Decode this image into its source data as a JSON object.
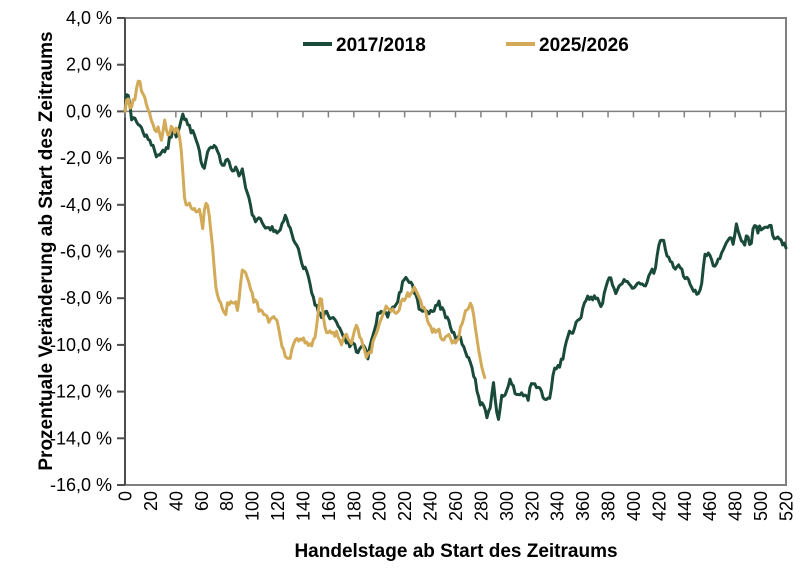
{
  "chart_data": {
    "type": "line",
    "title": "",
    "xlabel": "Handelstage ab Start des Zeitraums",
    "ylabel": "Prozentuale Veränderung ab Start des Zeitraums",
    "xlim": [
      0,
      520
    ],
    "ylim": [
      -16,
      4
    ],
    "grid": false,
    "legend_position": "top-center-inside",
    "background_color": "#ffffff",
    "axis_box_color": "#808080",
    "y_axis_line_color": "#4d4d4d",
    "zero_line_color": "#808080",
    "tick_text_color": "#000000",
    "x_ticks": {
      "values": [
        0,
        20,
        40,
        60,
        80,
        100,
        120,
        140,
        160,
        180,
        200,
        220,
        240,
        260,
        280,
        300,
        320,
        340,
        360,
        380,
        400,
        420,
        440,
        460,
        480,
        500,
        520
      ],
      "labels": [
        "0",
        "20",
        "40",
        "60",
        "80",
        "100",
        "120",
        "140",
        "160",
        "180",
        "200",
        "220",
        "240",
        "260",
        "280",
        "300",
        "320",
        "340",
        "360",
        "380",
        "400",
        "420",
        "440",
        "460",
        "480",
        "500",
        "520"
      ],
      "rotation_deg": -90
    },
    "y_ticks": {
      "values": [
        4,
        2,
        0,
        -2,
        -4,
        -6,
        -8,
        -10,
        -12,
        -14,
        -16
      ],
      "labels": [
        "4,0 %",
        "2,0 %",
        "0,0 %",
        "-2,0 %",
        "-4,0 %",
        "-6,0 %",
        "-8,0 %",
        "-10,0 %",
        "-12,0 %",
        "-14,0 %",
        "-16,0 %"
      ]
    },
    "series": [
      {
        "name": "2017/2018",
        "color": "#1a4a3a",
        "line_width": 3,
        "x_unit": "Handelstag",
        "y_unit": "percent",
        "anchors": [
          [
            0,
            0.0
          ],
          [
            1,
            0.55
          ],
          [
            2,
            1.0
          ],
          [
            3,
            0.5
          ],
          [
            5,
            -0.3
          ],
          [
            7,
            -0.15
          ],
          [
            9,
            -0.45
          ],
          [
            12,
            -0.63
          ],
          [
            14,
            -0.98
          ],
          [
            17,
            -1.13
          ],
          [
            20,
            -1.41
          ],
          [
            22,
            -1.56
          ],
          [
            25,
            -1.91
          ],
          [
            28,
            -1.84
          ],
          [
            30,
            -1.56
          ],
          [
            33,
            -1.7
          ],
          [
            35,
            -1.13
          ],
          [
            38,
            -0.84
          ],
          [
            41,
            -1.2
          ],
          [
            43,
            -0.63
          ],
          [
            46,
            -0.15
          ],
          [
            49,
            -0.5
          ],
          [
            51,
            -0.7
          ],
          [
            54,
            -0.98
          ],
          [
            57,
            -1.48
          ],
          [
            60,
            -2.1
          ],
          [
            62,
            -2.5
          ],
          [
            64,
            -1.9
          ],
          [
            67,
            -1.56
          ],
          [
            70,
            -1.41
          ],
          [
            72,
            -1.56
          ],
          [
            75,
            -2.13
          ],
          [
            78,
            -2.41
          ],
          [
            80,
            -1.98
          ],
          [
            82,
            -2.27
          ],
          [
            85,
            -2.5
          ],
          [
            88,
            -2.35
          ],
          [
            90,
            -2.7
          ],
          [
            93,
            -2.55
          ],
          [
            95,
            -3.2
          ],
          [
            98,
            -3.9
          ],
          [
            102,
            -4.7
          ],
          [
            106,
            -4.6
          ],
          [
            109,
            -5.0
          ],
          [
            112,
            -5.1
          ],
          [
            115,
            -4.95
          ],
          [
            118,
            -5.25
          ],
          [
            122,
            -5.0
          ],
          [
            126,
            -4.45
          ],
          [
            129,
            -4.9
          ],
          [
            132,
            -5.4
          ],
          [
            136,
            -5.9
          ],
          [
            140,
            -6.7
          ],
          [
            144,
            -6.91
          ],
          [
            146,
            -7.4
          ],
          [
            148,
            -8.05
          ],
          [
            152,
            -8.48
          ],
          [
            155,
            -8.8
          ],
          [
            158,
            -8.6
          ],
          [
            161,
            -8.77
          ],
          [
            164,
            -8.7
          ],
          [
            167,
            -9.0
          ],
          [
            171,
            -9.5
          ],
          [
            175,
            -9.9
          ],
          [
            177,
            -10.1
          ],
          [
            179,
            -9.8
          ],
          [
            183,
            -10.3
          ],
          [
            187,
            -10.0
          ],
          [
            191,
            -10.5
          ],
          [
            195,
            -9.7
          ],
          [
            199,
            -8.7
          ],
          [
            203,
            -8.56
          ],
          [
            207,
            -8.77
          ],
          [
            211,
            -8.35
          ],
          [
            215,
            -8.06
          ],
          [
            219,
            -7.15
          ],
          [
            223,
            -7.27
          ],
          [
            227,
            -7.63
          ],
          [
            231,
            -8.35
          ],
          [
            235,
            -8.63
          ],
          [
            239,
            -8.63
          ],
          [
            243,
            -8.48
          ],
          [
            247,
            -8.2
          ],
          [
            252,
            -8.77
          ],
          [
            256,
            -9.2
          ],
          [
            260,
            -9.63
          ],
          [
            263,
            -9.63
          ],
          [
            267,
            -10.13
          ],
          [
            271,
            -10.77
          ],
          [
            275,
            -11.41
          ],
          [
            279,
            -12.48
          ],
          [
            283,
            -12.63
          ],
          [
            285,
            -13.11
          ],
          [
            287,
            -12.7
          ],
          [
            290,
            -11.7
          ],
          [
            292,
            -12.77
          ],
          [
            294,
            -13.3
          ],
          [
            296,
            -12.26
          ],
          [
            300,
            -12.05
          ],
          [
            303,
            -11.41
          ],
          [
            305,
            -11.7
          ],
          [
            307,
            -12.05
          ],
          [
            311,
            -12.12
          ],
          [
            315,
            -12.05
          ],
          [
            317,
            -12.48
          ],
          [
            319,
            -11.55
          ],
          [
            323,
            -11.77
          ],
          [
            327,
            -11.84
          ],
          [
            330,
            -12.33
          ],
          [
            334,
            -12.19
          ],
          [
            338,
            -11.05
          ],
          [
            342,
            -10.9
          ],
          [
            345,
            -10.48
          ],
          [
            348,
            -9.63
          ],
          [
            350,
            -9.48
          ],
          [
            353,
            -9.34
          ],
          [
            355,
            -8.98
          ],
          [
            358,
            -8.84
          ],
          [
            361,
            -8.34
          ],
          [
            363,
            -8.05
          ],
          [
            367,
            -7.98
          ],
          [
            371,
            -7.91
          ],
          [
            375,
            -8.45
          ],
          [
            378,
            -7.5
          ],
          [
            382,
            -7.13
          ],
          [
            386,
            -7.77
          ],
          [
            389,
            -7.41
          ],
          [
            393,
            -7.2
          ],
          [
            397,
            -7.41
          ],
          [
            401,
            -7.63
          ],
          [
            405,
            -7.34
          ],
          [
            409,
            -7.56
          ],
          [
            413,
            -6.91
          ],
          [
            417,
            -6.84
          ],
          [
            421,
            -5.45
          ],
          [
            424,
            -5.55
          ],
          [
            426,
            -6.27
          ],
          [
            429,
            -6.41
          ],
          [
            433,
            -6.7
          ],
          [
            437,
            -6.63
          ],
          [
            439,
            -6.98
          ],
          [
            442,
            -7.13
          ],
          [
            445,
            -7.34
          ],
          [
            449,
            -7.77
          ],
          [
            451,
            -7.91
          ],
          [
            454,
            -7.2
          ],
          [
            456,
            -6.2
          ],
          [
            459,
            -6.13
          ],
          [
            463,
            -6.63
          ],
          [
            466,
            -6.48
          ],
          [
            470,
            -5.98
          ],
          [
            474,
            -5.48
          ],
          [
            476,
            -5.27
          ],
          [
            479,
            -5.7
          ],
          [
            481,
            -4.77
          ],
          [
            484,
            -5.41
          ],
          [
            487,
            -5.77
          ],
          [
            489,
            -5.2
          ],
          [
            492,
            -5.84
          ],
          [
            495,
            -4.7
          ],
          [
            497,
            -5.13
          ],
          [
            500,
            -4.98
          ],
          [
            503,
            -4.84
          ],
          [
            505,
            -5.13
          ],
          [
            508,
            -4.77
          ],
          [
            510,
            -5.41
          ],
          [
            513,
            -5.27
          ],
          [
            516,
            -5.56
          ],
          [
            518,
            -5.7
          ],
          [
            520,
            -5.85
          ]
        ]
      },
      {
        "name": "2025/2026",
        "color": "#d3aa57",
        "line_width": 3,
        "x_unit": "Handelstag",
        "y_unit": "percent",
        "anchors": [
          [
            0,
            0.0
          ],
          [
            1,
            0.4
          ],
          [
            2,
            0.73
          ],
          [
            4,
            0.1
          ],
          [
            6,
            0.35
          ],
          [
            8,
            0.6
          ],
          [
            10,
            1.1
          ],
          [
            11,
            1.35
          ],
          [
            13,
            0.8
          ],
          [
            15,
            0.65
          ],
          [
            18,
            0.1
          ],
          [
            21,
            -0.48
          ],
          [
            24,
            -0.87
          ],
          [
            26,
            -0.56
          ],
          [
            29,
            -1.4
          ],
          [
            31,
            -0.45
          ],
          [
            33,
            -0.8
          ],
          [
            35,
            -1.06
          ],
          [
            37,
            -0.56
          ],
          [
            39,
            -0.91
          ],
          [
            41,
            -0.7
          ],
          [
            43,
            -1.2
          ],
          [
            45,
            -1.9
          ],
          [
            46,
            -3.5
          ],
          [
            48,
            -3.95
          ],
          [
            50,
            -3.84
          ],
          [
            52,
            -4.05
          ],
          [
            55,
            -4.2
          ],
          [
            58,
            -4.2
          ],
          [
            60,
            -4.45
          ],
          [
            61,
            -5.0
          ],
          [
            63,
            -3.8
          ],
          [
            65,
            -4.0
          ],
          [
            66,
            -4.4
          ],
          [
            68,
            -5.3
          ],
          [
            70,
            -6.6
          ],
          [
            72,
            -7.9
          ],
          [
            74,
            -8.06
          ],
          [
            76,
            -8.35
          ],
          [
            79,
            -8.9
          ],
          [
            81,
            -8.06
          ],
          [
            84,
            -8.35
          ],
          [
            87,
            -8.2
          ],
          [
            89,
            -8.5
          ],
          [
            91,
            -7.3
          ],
          [
            93,
            -6.62
          ],
          [
            95,
            -7.06
          ],
          [
            98,
            -7.5
          ],
          [
            101,
            -8.06
          ],
          [
            104,
            -8.3
          ],
          [
            106,
            -8.56
          ],
          [
            110,
            -8.63
          ],
          [
            114,
            -9.06
          ],
          [
            118,
            -8.7
          ],
          [
            122,
            -9.63
          ],
          [
            126,
            -10.6
          ],
          [
            130,
            -10.45
          ],
          [
            134,
            -9.9
          ],
          [
            138,
            -9.7
          ],
          [
            142,
            -9.8
          ],
          [
            146,
            -10.1
          ],
          [
            150,
            -9.63
          ],
          [
            152,
            -8.5
          ],
          [
            154,
            -7.84
          ],
          [
            156,
            -8.8
          ],
          [
            158,
            -9.35
          ],
          [
            162,
            -9.5
          ],
          [
            166,
            -9.5
          ],
          [
            170,
            -9.9
          ],
          [
            174,
            -9.63
          ],
          [
            178,
            -9.85
          ],
          [
            182,
            -9.2
          ],
          [
            186,
            -9.9
          ],
          [
            190,
            -10.6
          ],
          [
            194,
            -10.2
          ],
          [
            198,
            -9.35
          ],
          [
            202,
            -8.77
          ],
          [
            206,
            -8.35
          ],
          [
            210,
            -8.48
          ],
          [
            214,
            -8.63
          ],
          [
            218,
            -8.1
          ],
          [
            222,
            -7.9
          ],
          [
            226,
            -7.65
          ],
          [
            229,
            -7.55
          ],
          [
            232,
            -8.05
          ],
          [
            236,
            -8.6
          ],
          [
            239,
            -9.0
          ],
          [
            242,
            -9.42
          ],
          [
            246,
            -9.35
          ],
          [
            250,
            -9.7
          ],
          [
            254,
            -9.56
          ],
          [
            258,
            -9.9
          ],
          [
            262,
            -9.77
          ],
          [
            266,
            -8.77
          ],
          [
            270,
            -8.35
          ],
          [
            273,
            -8.26
          ],
          [
            276,
            -9.3
          ],
          [
            279,
            -10.4
          ],
          [
            281,
            -11.1
          ],
          [
            283,
            -11.4
          ]
        ]
      }
    ]
  }
}
